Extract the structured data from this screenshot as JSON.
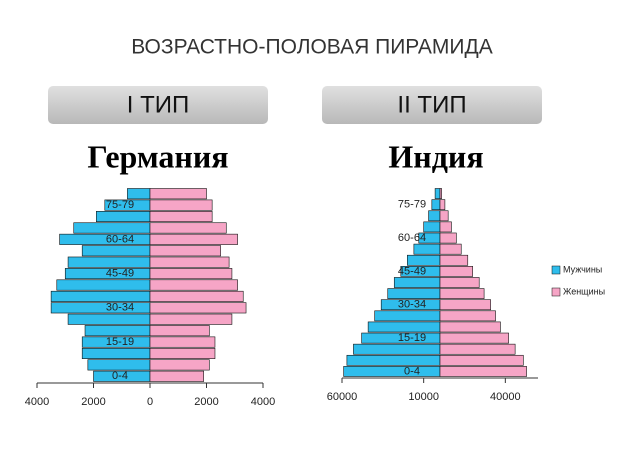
{
  "title": "ВОЗРАСТНО-ПОЛОВАЯ ПИРАМИДА",
  "chart_data": [
    {
      "type": "pyramid",
      "header": "I ТИП",
      "title": "Германия",
      "categories": [
        "0-4",
        null,
        null,
        "15-19",
        null,
        null,
        "30-34",
        null,
        null,
        "45-49",
        null,
        null,
        "60-64",
        null,
        null,
        "75-79",
        null
      ],
      "series": [
        {
          "color": "#2fbdec",
          "values": [
            2000,
            2200,
            2400,
            2400,
            2300,
            2900,
            3500,
            3500,
            3300,
            3000,
            2900,
            2400,
            3200,
            2700,
            1900,
            1600,
            800
          ]
        },
        {
          "color": "#f6a5c6",
          "values": [
            1900,
            2100,
            2300,
            2300,
            2100,
            2900,
            3400,
            3300,
            3100,
            2900,
            2800,
            2500,
            3100,
            2700,
            2200,
            2200,
            2000
          ]
        }
      ],
      "xlim": [
        -4000,
        4000
      ],
      "xticks": [
        {
          "value": -4000,
          "label": "4000"
        },
        {
          "value": -2000,
          "label": "2000"
        },
        0,
        2000,
        4000
      ]
    },
    {
      "type": "pyramid",
      "header": "II ТИП",
      "title": "Индия",
      "categories": [
        "0-4",
        null,
        null,
        "15-19",
        null,
        null,
        "30-34",
        null,
        null,
        "45-49",
        null,
        null,
        "60-64",
        null,
        null,
        "75-79",
        null
      ],
      "series": [
        {
          "name": "Мужчины",
          "color": "#2fbdec",
          "values": [
            59000,
            57000,
            53000,
            48000,
            44000,
            40000,
            36000,
            32000,
            28000,
            24000,
            20000,
            16000,
            13000,
            10000,
            7000,
            5000,
            3000
          ]
        },
        {
          "name": "Женщины",
          "color": "#f6a5c6",
          "values": [
            53000,
            51000,
            46000,
            42000,
            37000,
            34000,
            31000,
            27000,
            24000,
            20000,
            17000,
            13000,
            10000,
            7000,
            5000,
            3000,
            1000
          ]
        }
      ],
      "xlim": [
        -60000,
        60000
      ],
      "xticks": [
        {
          "value": -60000,
          "label": "60000"
        },
        {
          "value": -10000,
          "label": "10000"
        },
        40000
      ],
      "legend": "right"
    }
  ]
}
